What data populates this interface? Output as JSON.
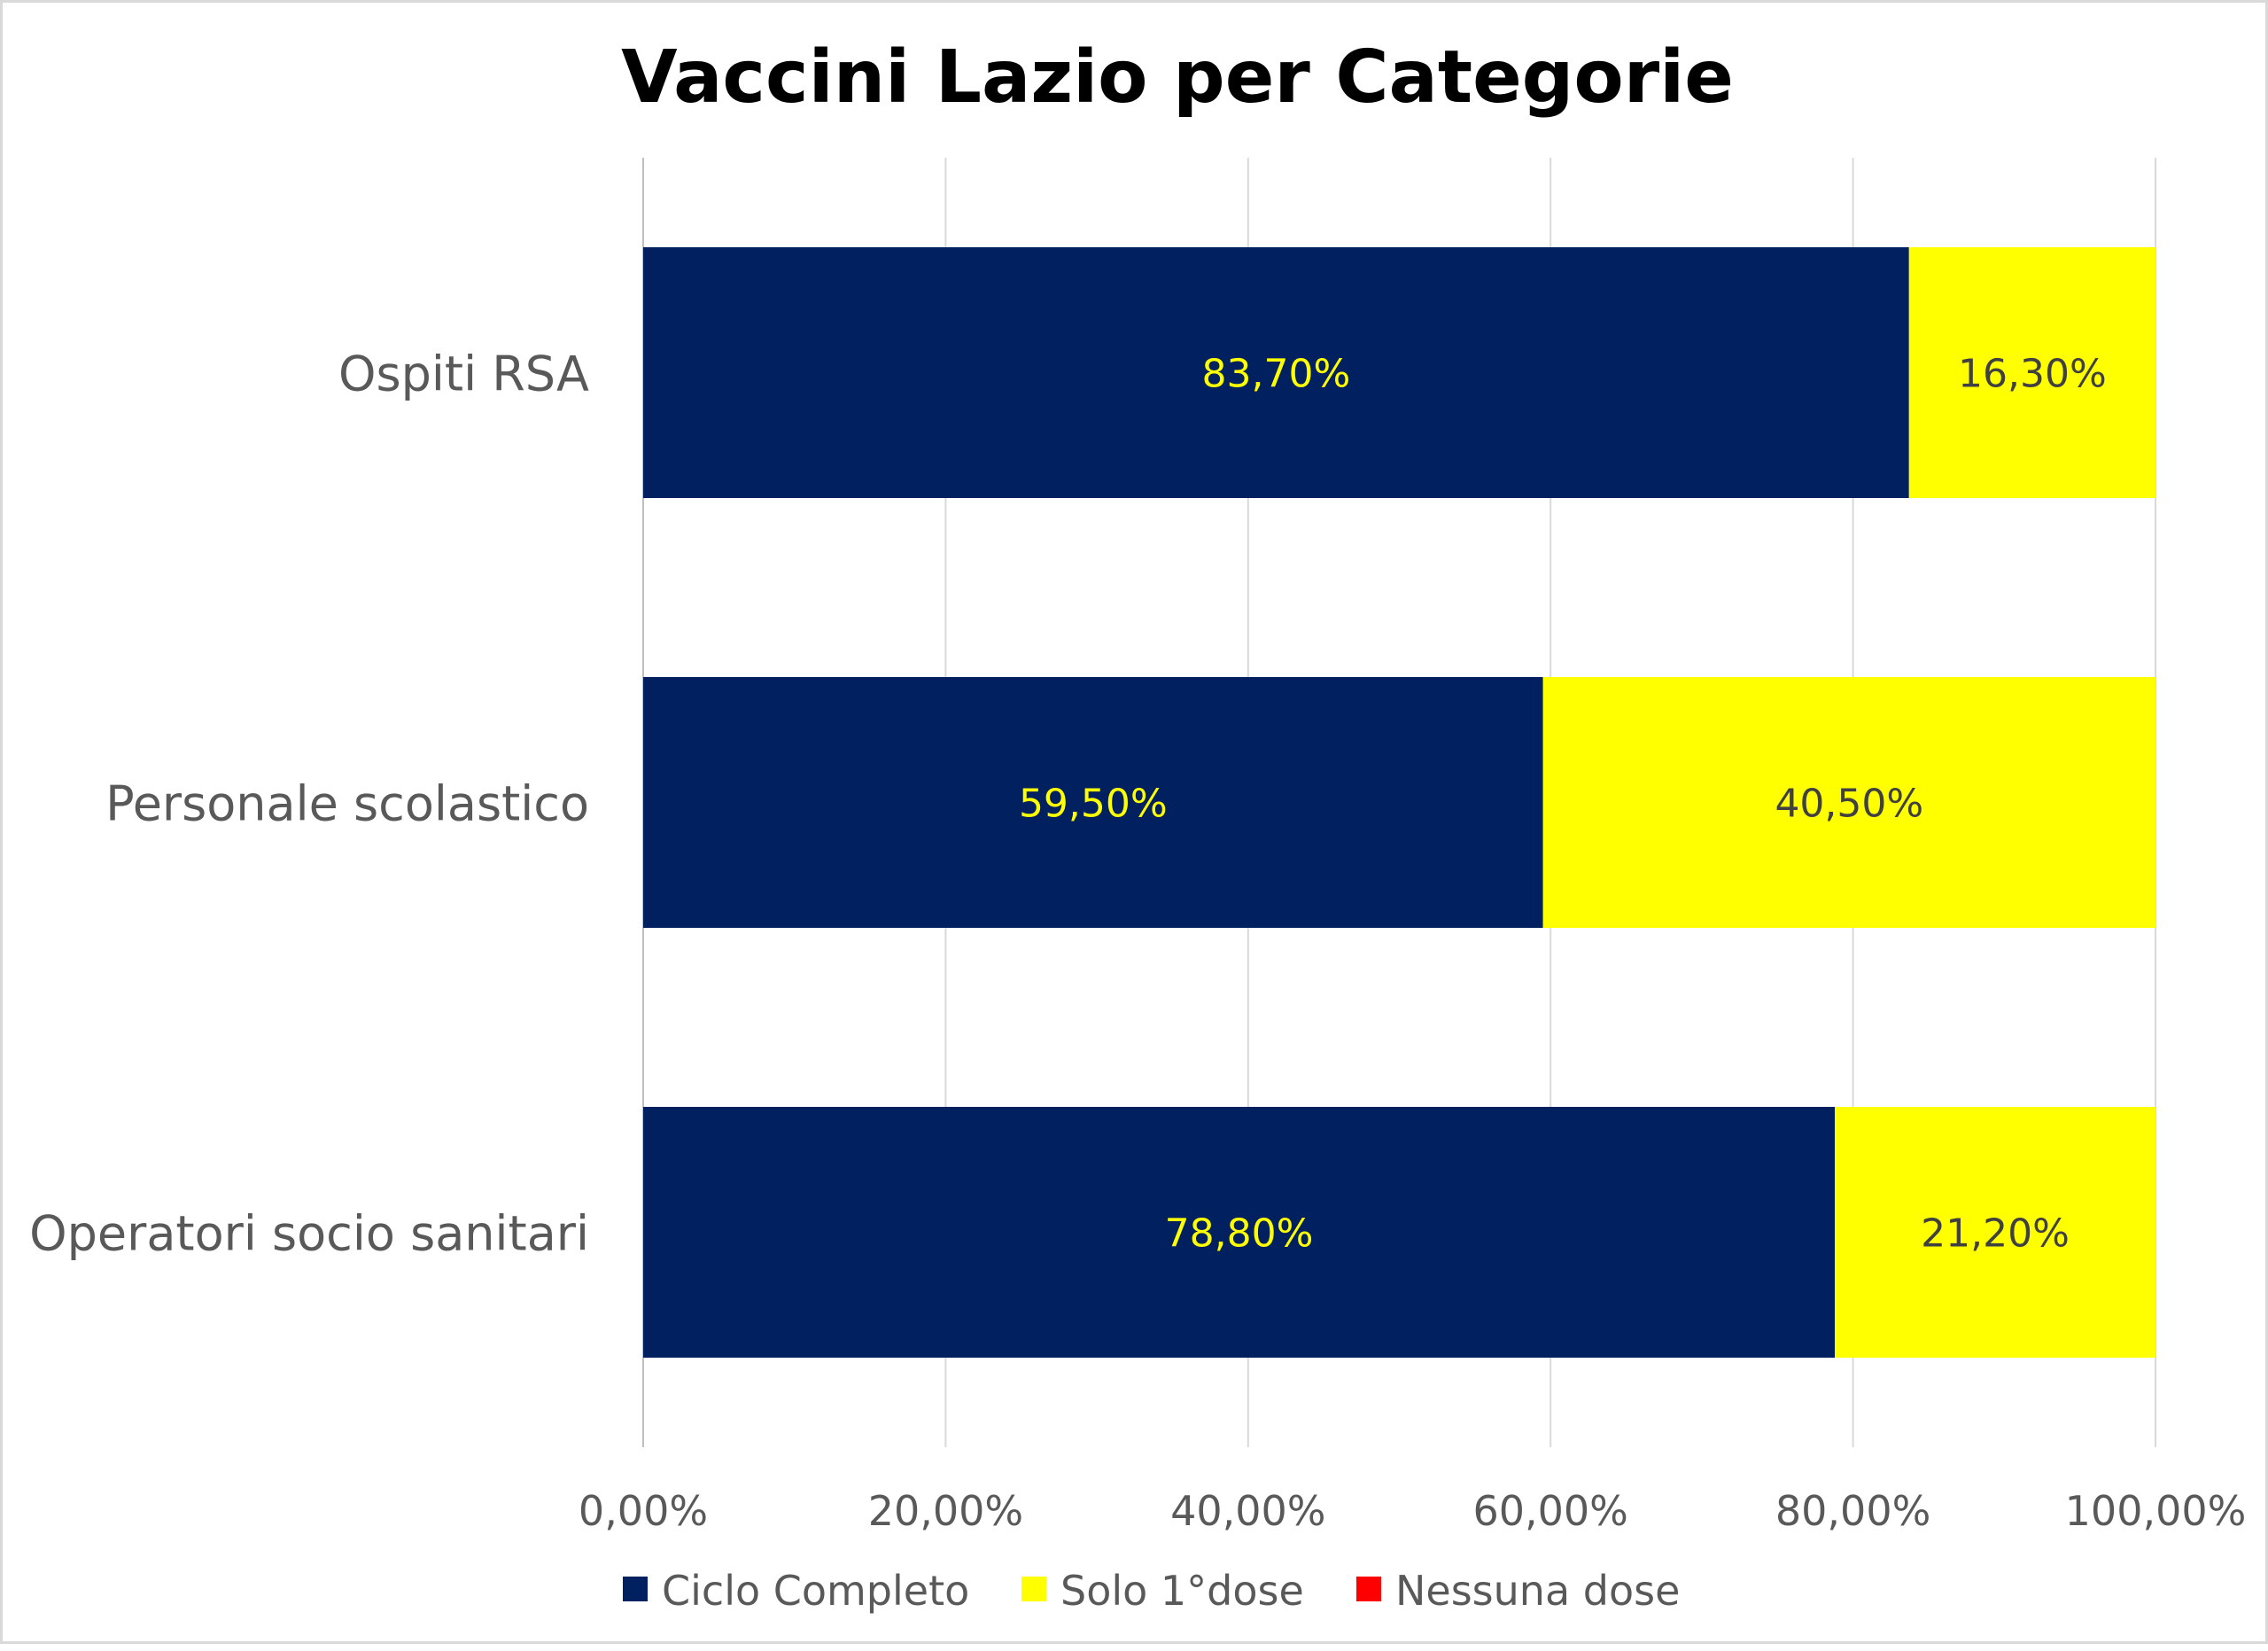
{
  "chart_data": {
    "type": "bar",
    "orientation": "horizontal",
    "stacked": true,
    "title": "Vaccini Lazio per Categorie",
    "categories": [
      "Ospiti RSA",
      "Personale scolastico",
      "Operatori socio sanitari"
    ],
    "series": [
      {
        "name": "Ciclo Completo",
        "color": "#002060",
        "label_color": "#ffff00",
        "values": [
          83.7,
          59.5,
          78.8
        ],
        "labels": [
          "83,70%",
          "59,50%",
          "78,80%"
        ]
      },
      {
        "name": "Solo 1°dose",
        "color": "#ffff00",
        "label_color": "#404040",
        "values": [
          16.3,
          40.5,
          21.2
        ],
        "labels": [
          "16,30%",
          "40,50%",
          "21,20%"
        ]
      },
      {
        "name": "Nessuna dose",
        "color": "#ff0000",
        "label_color": "#404040",
        "values": [
          0,
          0,
          0
        ],
        "labels": [
          "",
          "",
          ""
        ]
      }
    ],
    "x_ticks": [
      "0,00%",
      "20,00%",
      "40,00%",
      "60,00%",
      "80,00%",
      "100,00%"
    ],
    "xlim": [
      0,
      100
    ],
    "grid": "vertical",
    "legend": "bottom",
    "xlabel": "",
    "ylabel": ""
  }
}
